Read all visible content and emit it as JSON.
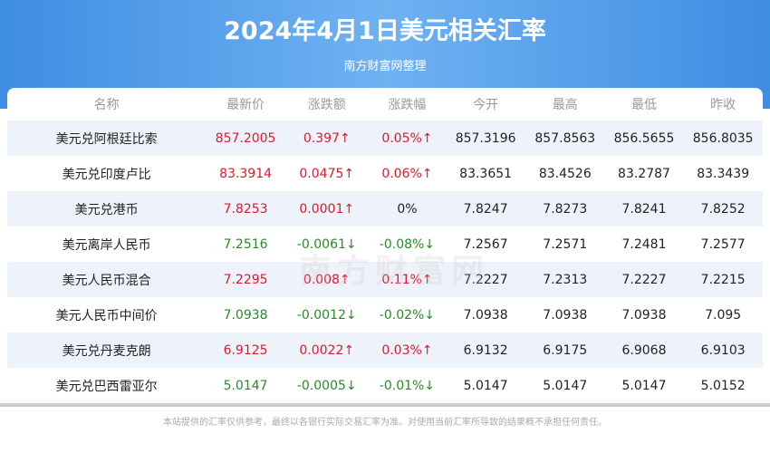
{
  "header": {
    "title": "2024年4月1日美元相关汇率",
    "subtitle": "南方财富网整理"
  },
  "columns": [
    "名称",
    "最新价",
    "涨跌额",
    "涨跌幅",
    "今开",
    "最高",
    "最低",
    "昨收"
  ],
  "rows": [
    {
      "name": "美元兑阿根廷比索",
      "latest": "857.2005",
      "change": "0.397↑",
      "pct": "0.05%↑",
      "open": "857.3196",
      "high": "857.8563",
      "low": "856.5655",
      "prev": "856.8035",
      "trend": "up"
    },
    {
      "name": "美元兑印度卢比",
      "latest": "83.3914",
      "change": "0.0475↑",
      "pct": "0.06%↑",
      "open": "83.3651",
      "high": "83.4526",
      "low": "83.2787",
      "prev": "83.3439",
      "trend": "up"
    },
    {
      "name": "美元兑港币",
      "latest": "7.8253",
      "change": "0.0001↑",
      "pct": "0%",
      "open": "7.8247",
      "high": "7.8273",
      "low": "7.8241",
      "prev": "7.8252",
      "trend": "flat-up"
    },
    {
      "name": "美元离岸人民币",
      "latest": "7.2516",
      "change": "-0.0061↓",
      "pct": "-0.08%↓",
      "open": "7.2567",
      "high": "7.2571",
      "low": "7.2481",
      "prev": "7.2577",
      "trend": "down"
    },
    {
      "name": "美元人民币混合",
      "latest": "7.2295",
      "change": "0.008↑",
      "pct": "0.11%↑",
      "open": "7.2227",
      "high": "7.2313",
      "low": "7.2227",
      "prev": "7.2215",
      "trend": "up"
    },
    {
      "name": "美元人民币中间价",
      "latest": "7.0938",
      "change": "-0.0012↓",
      "pct": "-0.02%↓",
      "open": "7.0938",
      "high": "7.0938",
      "low": "7.0938",
      "prev": "7.095",
      "trend": "down"
    },
    {
      "name": "美元兑丹麦克朗",
      "latest": "6.9125",
      "change": "0.0022↑",
      "pct": "0.03%↑",
      "open": "6.9132",
      "high": "6.9175",
      "low": "6.9068",
      "prev": "6.9103",
      "trend": "up"
    },
    {
      "name": "美元兑巴西雷亚尔",
      "latest": "5.0147",
      "change": "-0.0005↓",
      "pct": "-0.01%↓",
      "open": "5.0147",
      "high": "5.0147",
      "low": "5.0147",
      "prev": "5.0152",
      "trend": "down"
    }
  ],
  "watermark": "南方财富网",
  "footer": "本站提供的汇率仅供参考，最终以各银行实际交易汇率为准。对使用当前汇率所导致的结果概不承担任何责任。"
}
